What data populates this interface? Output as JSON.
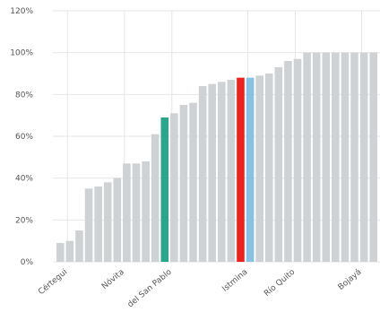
{
  "chart_data": {
    "type": "bar",
    "ylim": [
      0,
      120
    ],
    "yticks": [
      "0%",
      "20%",
      "40%",
      "60%",
      "80%",
      "100%",
      "120%"
    ],
    "grid": true,
    "values": [
      9,
      10,
      15,
      35,
      36,
      38,
      40,
      47,
      47,
      48,
      61,
      69,
      71,
      75,
      76,
      84,
      85,
      86,
      87,
      88,
      88,
      89,
      90,
      93,
      96,
      97,
      100,
      100,
      100,
      100,
      100,
      100,
      100,
      100
    ],
    "x_tick_labels": [
      {
        "index": 0,
        "label": "Cértegui"
      },
      {
        "index": 6,
        "label": "Nóvita"
      },
      {
        "index": 11,
        "label": "del San Pablo"
      },
      {
        "index": 19,
        "label": "Istmina"
      },
      {
        "index": 24,
        "label": "Río Quito"
      },
      {
        "index": 31,
        "label": "Bojayá"
      }
    ],
    "highlight": [
      {
        "index": 11,
        "color": "#2aa78b"
      },
      {
        "index": 19,
        "color": "#f0201c"
      },
      {
        "index": 20,
        "color": "#85c1e5"
      }
    ],
    "bar_color": "#cfd2d4"
  }
}
